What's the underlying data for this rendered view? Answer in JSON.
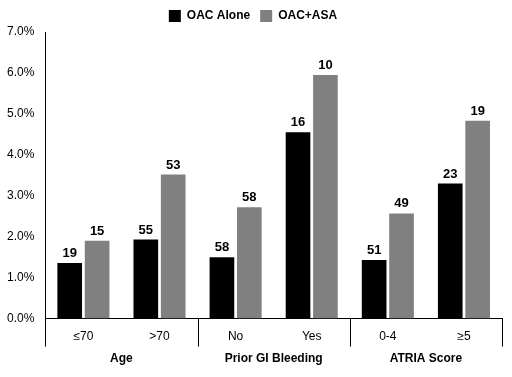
{
  "chart_data": {
    "type": "bar",
    "categories": [
      "≤70",
      ">70",
      "No",
      "Yes",
      "0-4",
      "≥5"
    ],
    "groups": [
      {
        "label": "Age",
        "categories": [
          "≤70",
          ">70"
        ]
      },
      {
        "label": "Prior GI Bleeding",
        "categories": [
          "No",
          "Yes"
        ]
      },
      {
        "label": "ATRIA Score",
        "categories": [
          "0-4",
          "≥5"
        ]
      }
    ],
    "series": [
      {
        "name": "OAC Alone",
        "color": "#000000",
        "values": [
          1.36,
          1.93,
          1.5,
          4.55,
          1.43,
          3.3
        ],
        "counts": [
          19,
          55,
          58,
          16,
          51,
          23
        ]
      },
      {
        "name": "OAC+ASA",
        "color": "#808080",
        "values": [
          1.9,
          3.52,
          2.72,
          5.95,
          2.57,
          4.83
        ],
        "counts": [
          15,
          53,
          58,
          10,
          49,
          19
        ]
      }
    ],
    "ylim": [
      0,
      7
    ],
    "yticks": [
      {
        "value": 0,
        "label": "0.0%"
      },
      {
        "value": 1,
        "label": "1.0%"
      },
      {
        "value": 2,
        "label": "2.0%"
      },
      {
        "value": 3,
        "label": "3.0%"
      },
      {
        "value": 4,
        "label": "4.0%"
      },
      {
        "value": 5,
        "label": "5.0%"
      },
      {
        "value": 6,
        "label": "6.0%"
      },
      {
        "value": 7,
        "label": "7.0%"
      }
    ],
    "grid": false,
    "legend": "top"
  }
}
